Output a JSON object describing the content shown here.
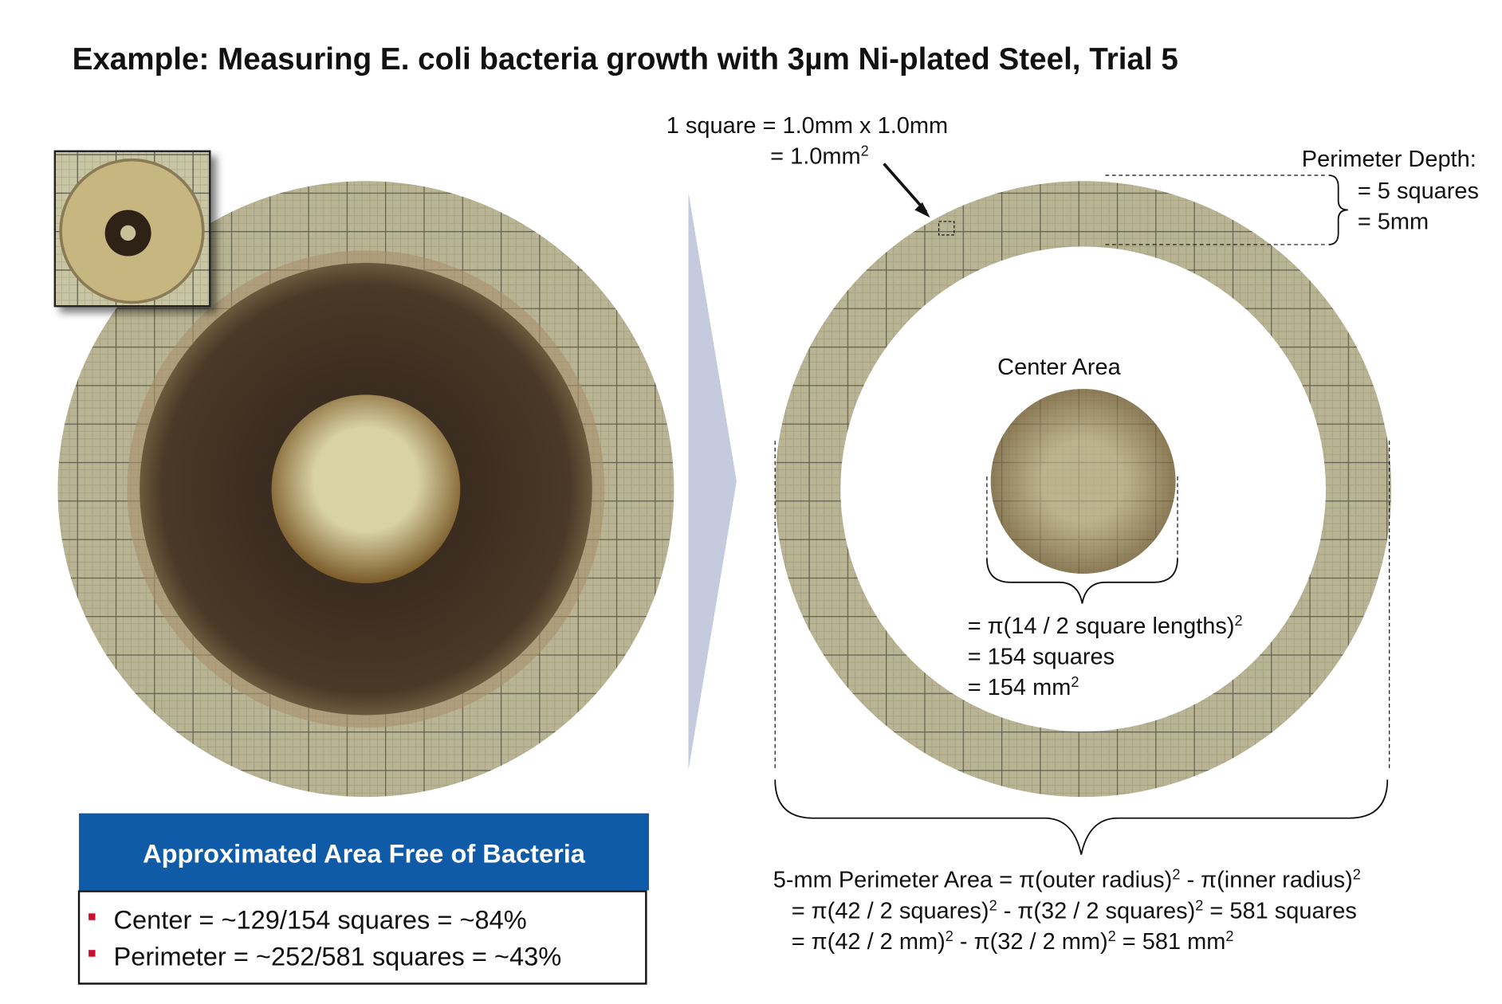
{
  "title": "Example: Measuring E. coli bacteria growth with 3µm Ni-plated Steel, Trial 5",
  "summary": {
    "heading": "Approximated Area Free of Bacteria",
    "items": [
      "Center = ~129/154 squares = ~84%",
      "Perimeter = ~252/581 squares = ~43%"
    ]
  },
  "annotations": {
    "square_size": [
      [
        "1 square = 1.0mm x 1.0mm"
      ],
      [
        "= 1.0mm",
        "2"
      ]
    ],
    "perimeter_depth": [
      [
        "Perimeter Depth:"
      ],
      [
        "= 5 squares"
      ],
      [
        "= 5mm"
      ]
    ],
    "center_label": "Center Area",
    "center_area": [
      [
        "= π(14 / 2 square lengths)",
        "2"
      ],
      [
        "= 154 squares"
      ],
      [
        "= 154 mm",
        "2"
      ]
    ],
    "perimeter_area": [
      [
        "5-mm Perimeter Area = π(outer radius)",
        "2",
        " - π(inner radius)",
        "2"
      ],
      [
        "= π(42 / 2 squares)",
        "2",
        " - π(32 / 2 squares)",
        "2",
        " = 581 squares"
      ],
      [
        "= π(42 / 2 mm)",
        "2",
        " - π(32 / 2 mm)",
        "2",
        " = 581 mm",
        "2"
      ]
    ]
  }
}
